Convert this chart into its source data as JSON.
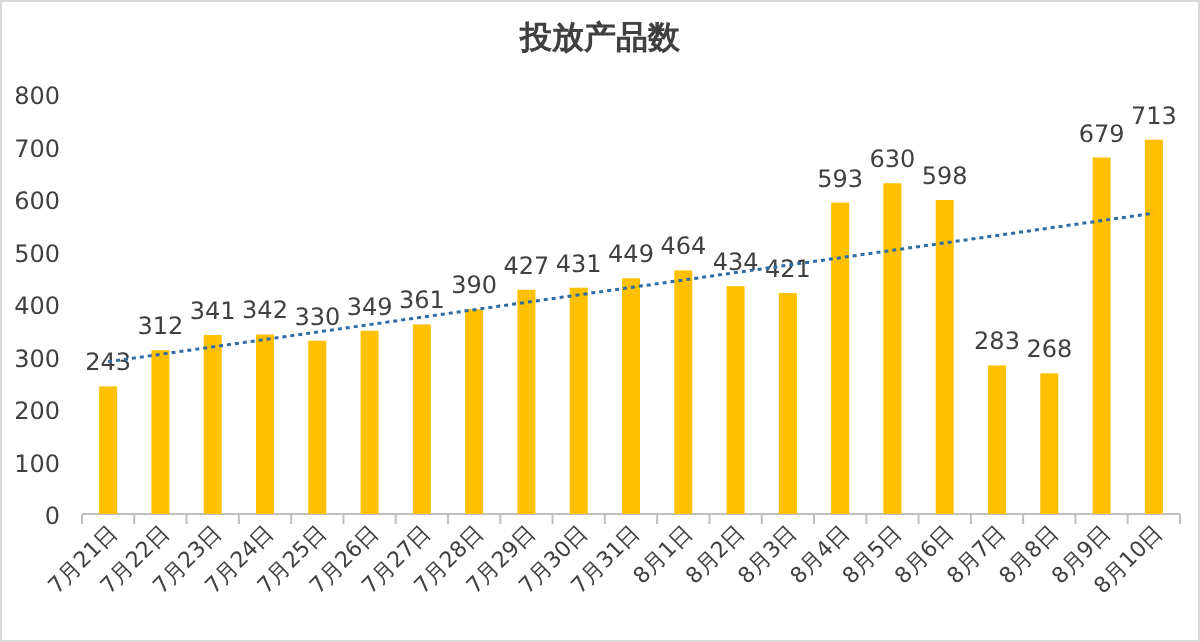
{
  "chart_data": {
    "type": "bar",
    "title": "投放产品数",
    "categories": [
      "7月21日",
      "7月22日",
      "7月23日",
      "7月24日",
      "7月25日",
      "7月26日",
      "7月27日",
      "7月28日",
      "7月29日",
      "7月30日",
      "7月31日",
      "8月1日",
      "8月2日",
      "8月3日",
      "8月4日",
      "8月5日",
      "8月6日",
      "8月7日",
      "8月8日",
      "8月9日",
      "8月10日"
    ],
    "series": [
      {
        "color": "#ffc000",
        "values": [
          243,
          312,
          341,
          342,
          330,
          349,
          361,
          390,
          427,
          431,
          449,
          464,
          434,
          421,
          593,
          630,
          598,
          283,
          268,
          679,
          713
        ],
        "value_labels": [
          "243",
          "312",
          "341",
          "342",
          "330",
          "349",
          "361",
          "390",
          "427",
          "431",
          "449",
          "464",
          "434",
          "421",
          "593",
          "630",
          "598",
          "283",
          "268",
          "679",
          "713"
        ]
      },
      {
        "type": "line",
        "color": "#2e6da4",
        "line_style": "dotted",
        "x": [
          "7月21日",
          "8月10日"
        ],
        "values": [
          290,
          573
        ]
      }
    ],
    "ylim": [
      0,
      800
    ],
    "yticks": [
      0,
      100,
      200,
      300,
      400,
      500,
      600,
      700,
      800
    ],
    "grid": false
  }
}
